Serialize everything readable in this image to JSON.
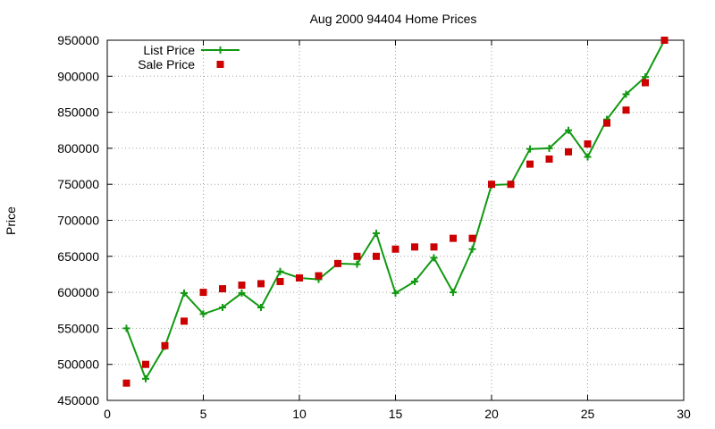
{
  "chart_data": {
    "type": "line",
    "title": "Aug 2000 94404 Home Prices",
    "xlabel": "",
    "ylabel": "Price",
    "xlim": [
      0,
      30
    ],
    "ylim": [
      450000,
      950000
    ],
    "x_ticks": [
      "0",
      "5",
      "10",
      "15",
      "20",
      "25",
      "30"
    ],
    "y_ticks": [
      "450000",
      "500000",
      "550000",
      "600000",
      "650000",
      "700000",
      "750000",
      "800000",
      "850000",
      "900000",
      "950000"
    ],
    "grid": true,
    "legend_position": "top-left",
    "series": [
      {
        "name": "List Price",
        "style": "lines+points",
        "marker": "plus",
        "color": "#119911",
        "x": [
          1,
          2,
          3,
          4,
          5,
          6,
          7,
          8,
          9,
          10,
          11,
          12,
          13,
          14,
          15,
          16,
          17,
          18,
          19,
          20,
          21,
          22,
          23,
          24,
          25,
          26,
          27,
          28,
          29
        ],
        "y": [
          550000,
          480000,
          525000,
          599000,
          570000,
          579000,
          599000,
          579000,
          629000,
          620000,
          618000,
          640000,
          639000,
          682000,
          599000,
          615000,
          648000,
          600000,
          660000,
          749000,
          750000,
          799000,
          800000,
          825000,
          788000,
          840000,
          875000,
          899000,
          950000
        ]
      },
      {
        "name": "Sale Price",
        "style": "points",
        "marker": "square",
        "color": "#cc0000",
        "x": [
          1,
          2,
          3,
          4,
          5,
          6,
          7,
          8,
          9,
          10,
          11,
          12,
          13,
          14,
          15,
          16,
          17,
          18,
          19,
          20,
          21,
          22,
          23,
          24,
          25,
          26,
          27,
          28,
          29
        ],
        "y": [
          474000,
          500000,
          526000,
          560000,
          600000,
          605000,
          610000,
          612000,
          615000,
          620000,
          623000,
          640000,
          650000,
          650000,
          660000,
          663000,
          663000,
          675000,
          675000,
          750000,
          750000,
          778000,
          785000,
          795000,
          806000,
          835000,
          853000,
          891000,
          950000
        ]
      }
    ]
  }
}
